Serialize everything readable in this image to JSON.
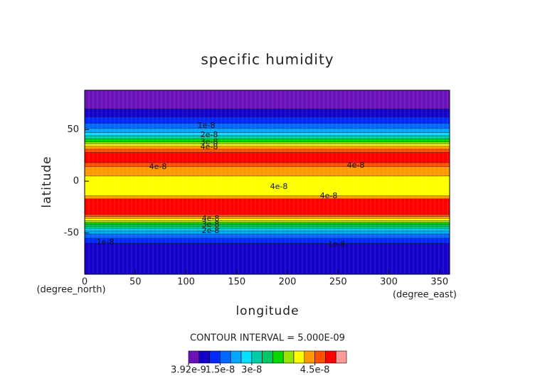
{
  "chart_data": {
    "type": "contour",
    "title": "specific humidity",
    "xlabel": "longitude",
    "ylabel": "latitude",
    "xunits": "(degree_east)",
    "yunits": "(degree_north)",
    "note": "CONTOUR INTERVAL = 5.000E-09",
    "xlim": [
      0,
      360
    ],
    "ylim": [
      -90,
      88
    ],
    "xticks": [
      0,
      50,
      100,
      150,
      200,
      250,
      300,
      350
    ],
    "yticks": [
      -50,
      0,
      50
    ],
    "lat_bins": [
      -90,
      -60,
      -55,
      -51,
      -48,
      -46,
      -44,
      -42,
      -40,
      -38,
      -36,
      -34,
      -32,
      -17,
      -14,
      5,
      14,
      18,
      28,
      31,
      34,
      36,
      38,
      41,
      44,
      47,
      51,
      56,
      62,
      70,
      88
    ],
    "values": [
      8e-09,
      1.2e-08,
      1.7e-08,
      2.2e-08,
      2.7e-08,
      3.1e-08,
      3.4e-08,
      3.6e-08,
      3.9e-08,
      4.1e-08,
      4.4e-08,
      4.6e-08,
      4.9e-08,
      4.4e-08,
      4.1e-08,
      4.4e-08,
      4.6e-08,
      4.9e-08,
      4.6e-08,
      4.4e-08,
      4.1e-08,
      3.9e-08,
      3.6e-08,
      3.1e-08,
      2.7e-08,
      2.2e-08,
      1.7e-08,
      1.2e-08,
      8e-09,
      5e-09
    ],
    "levels": [
      3.92e-09,
      7e-09,
      1e-08,
      1.5e-08,
      2e-08,
      2.5e-08,
      3e-08,
      3.25e-08,
      3.5e-08,
      3.75e-08,
      4e-08,
      4.25e-08,
      4.5e-08,
      4.75e-08,
      5e-08,
      5.5e-08
    ],
    "colors": [
      "#6a12b8",
      "#1400c8",
      "#0028ff",
      "#0068ff",
      "#00a8ff",
      "#00e0ff",
      "#00cca8",
      "#00c864",
      "#00d800",
      "#96e400",
      "#ffff00",
      "#ff9a00",
      "#ff5000",
      "#ff0000",
      "#ff9a9a"
    ],
    "colorbar_ticks": [
      {
        "value": 3.92e-09,
        "label": "3.92e-9"
      },
      {
        "value": 1.5e-08,
        "label": "1.5e-8"
      },
      {
        "value": 3e-08,
        "label": "3e-8"
      },
      {
        "value": 4.5e-08,
        "label": "4.5e-8"
      }
    ],
    "contour_labels": [
      "1e-8",
      "2e-8",
      "3e-8",
      "4e-8"
    ]
  }
}
